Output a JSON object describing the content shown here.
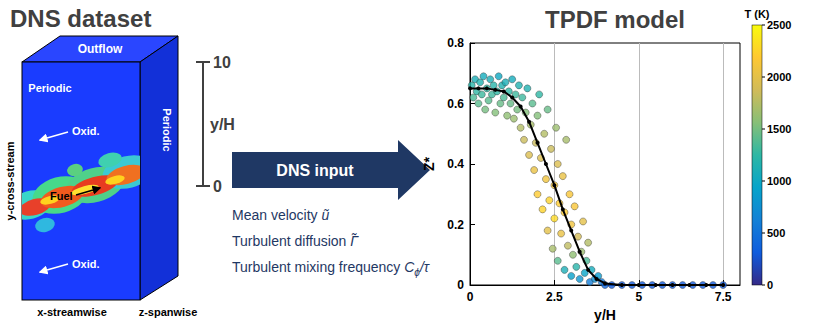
{
  "title_left": "DNS dataset",
  "box": {
    "top": "Outflow",
    "periodic_left": "Periodic",
    "periodic_right": "Periodic",
    "y_axis": "y-cross-stream",
    "x_axis": "x-streamwise",
    "z_axis": "z-spanwise",
    "oxid_top": "Oxid.",
    "fuel": "Fuel",
    "oxid_bottom": "Oxid."
  },
  "scale_bar": {
    "top": 10,
    "bottom": 0,
    "label": "y/H"
  },
  "arrow": {
    "label": "DNS input"
  },
  "inputs": [
    {
      "label": "Mean velocity",
      "symbol": "ũ",
      "sub": "",
      "after": ""
    },
    {
      "label": "Turbulent diffusion",
      "symbol": "Γ̃",
      "sub": "",
      "after": ""
    },
    {
      "label": "Turbulent mixing frequency",
      "symbol": "C",
      "sub": "ϕ",
      "after": "/τ"
    }
  ],
  "chart_data": {
    "type": "scatter",
    "title": "TPDF model",
    "x_label": "y/H",
    "y_label": "Z*",
    "xlim": [
      0,
      8
    ],
    "ylim": [
      0,
      0.8
    ],
    "xticks": [
      0,
      2.5,
      5,
      7.5
    ],
    "yticks": [
      0,
      0.2,
      0.4,
      0.6,
      0.8
    ],
    "grid": true,
    "points": [
      [
        0.05,
        0.66,
        1200
      ],
      [
        0.1,
        0.62,
        1350
      ],
      [
        0.15,
        0.68,
        1100
      ],
      [
        0.2,
        0.64,
        1250
      ],
      [
        0.25,
        0.6,
        1400
      ],
      [
        0.3,
        0.67,
        1150
      ],
      [
        0.35,
        0.63,
        1300
      ],
      [
        0.4,
        0.69,
        1050
      ],
      [
        0.45,
        0.58,
        1500
      ],
      [
        0.5,
        0.65,
        1250
      ],
      [
        0.55,
        0.61,
        1400
      ],
      [
        0.6,
        0.68,
        1100
      ],
      [
        0.65,
        0.63,
        1300
      ],
      [
        0.7,
        0.66,
        1200
      ],
      [
        0.75,
        0.57,
        1550
      ],
      [
        0.8,
        0.64,
        1250
      ],
      [
        0.85,
        0.69,
        1000
      ],
      [
        0.9,
        0.6,
        1450
      ],
      [
        0.95,
        0.66,
        1150
      ],
      [
        1.0,
        0.62,
        1350
      ],
      [
        1.05,
        0.67,
        1100
      ],
      [
        1.1,
        0.56,
        1600
      ],
      [
        1.15,
        0.64,
        1250
      ],
      [
        1.2,
        0.6,
        1450
      ],
      [
        1.25,
        0.68,
        1050
      ],
      [
        1.3,
        0.55,
        1650
      ],
      [
        1.35,
        0.63,
        1300
      ],
      [
        1.4,
        0.58,
        1500
      ],
      [
        1.45,
        0.66,
        1150
      ],
      [
        1.5,
        0.52,
        1750
      ],
      [
        1.55,
        0.62,
        1300
      ],
      [
        1.6,
        0.48,
        1850
      ],
      [
        1.65,
        0.57,
        1550
      ],
      [
        1.7,
        0.65,
        1150
      ],
      [
        1.75,
        0.43,
        1950
      ],
      [
        1.8,
        0.53,
        1700
      ],
      [
        1.85,
        0.6,
        1400
      ],
      [
        1.9,
        0.38,
        2050
      ],
      [
        1.95,
        0.47,
        1850
      ],
      [
        2.0,
        0.56,
        1550
      ],
      [
        2.0,
        0.3,
        2200
      ],
      [
        2.05,
        0.63,
        1250
      ],
      [
        2.1,
        0.42,
        1950
      ],
      [
        2.15,
        0.25,
        2250
      ],
      [
        2.2,
        0.5,
        1750
      ],
      [
        2.25,
        0.35,
        2100
      ],
      [
        2.3,
        0.58,
        1450
      ],
      [
        2.3,
        0.18,
        2000
      ],
      [
        2.35,
        0.28,
        2250
      ],
      [
        2.4,
        0.45,
        1850
      ],
      [
        2.45,
        0.12,
        1700
      ],
      [
        2.5,
        0.33,
        2150
      ],
      [
        2.5,
        0.22,
        2300
      ],
      [
        2.55,
        0.52,
        1650
      ],
      [
        2.6,
        0.4,
        1950
      ],
      [
        2.6,
        0.08,
        1400
      ],
      [
        2.65,
        0.27,
        2200
      ],
      [
        2.7,
        0.17,
        2050
      ],
      [
        2.75,
        0.36,
        2050
      ],
      [
        2.8,
        0.05,
        1100
      ],
      [
        2.8,
        0.24,
        2200
      ],
      [
        2.85,
        0.48,
        1700
      ],
      [
        2.9,
        0.13,
        1800
      ],
      [
        2.95,
        0.3,
        2150
      ],
      [
        3.0,
        0.2,
        2100
      ],
      [
        3.0,
        0.03,
        900
      ],
      [
        3.05,
        0.1,
        1600
      ],
      [
        3.1,
        0.26,
        2150
      ],
      [
        3.15,
        0.06,
        1200
      ],
      [
        3.2,
        0.16,
        1900
      ],
      [
        3.25,
        0.02,
        800
      ],
      [
        3.3,
        0.11,
        1650
      ],
      [
        3.35,
        0.21,
        2000
      ],
      [
        3.4,
        0.04,
        950
      ],
      [
        3.45,
        0.08,
        1350
      ],
      [
        3.5,
        0.14,
        1750
      ],
      [
        3.55,
        0.01,
        600
      ],
      [
        3.6,
        0.05,
        1050
      ],
      [
        3.7,
        0.02,
        750
      ],
      [
        3.8,
        0.03,
        850
      ],
      [
        3.9,
        0.01,
        550
      ],
      [
        4.0,
        0.0,
        400
      ],
      [
        4.2,
        0.0,
        300
      ],
      [
        4.5,
        0.0,
        300
      ],
      [
        4.8,
        0.0,
        300
      ],
      [
        5.1,
        0.0,
        300
      ],
      [
        5.4,
        0.0,
        300
      ],
      [
        5.7,
        0.0,
        300
      ],
      [
        6.0,
        0.0,
        300
      ],
      [
        6.3,
        0.0,
        300
      ],
      [
        6.6,
        0.0,
        300
      ],
      [
        6.9,
        0.0,
        300
      ],
      [
        7.2,
        0.0,
        300
      ],
      [
        7.5,
        0.0,
        300
      ]
    ],
    "colorbar": {
      "title": "T (K)",
      "range": [
        0,
        2500
      ],
      "ticks": [
        0,
        500,
        1000,
        1500,
        2000,
        2500
      ]
    },
    "mean_line": {
      "type": "line",
      "color": "#000000",
      "marker": "circle",
      "x": [
        0,
        0.25,
        0.5,
        0.75,
        1,
        1.25,
        1.5,
        1.75,
        2,
        2.25,
        2.5,
        2.75,
        3,
        3.25,
        3.5,
        3.75,
        4,
        4.5,
        5,
        5.5,
        6,
        6.5,
        7,
        7.5
      ],
      "values": [
        0.65,
        0.65,
        0.65,
        0.645,
        0.64,
        0.62,
        0.59,
        0.54,
        0.47,
        0.4,
        0.33,
        0.25,
        0.18,
        0.11,
        0.05,
        0.02,
        0.005,
        0,
        0,
        0,
        0,
        0,
        0,
        0
      ]
    }
  }
}
